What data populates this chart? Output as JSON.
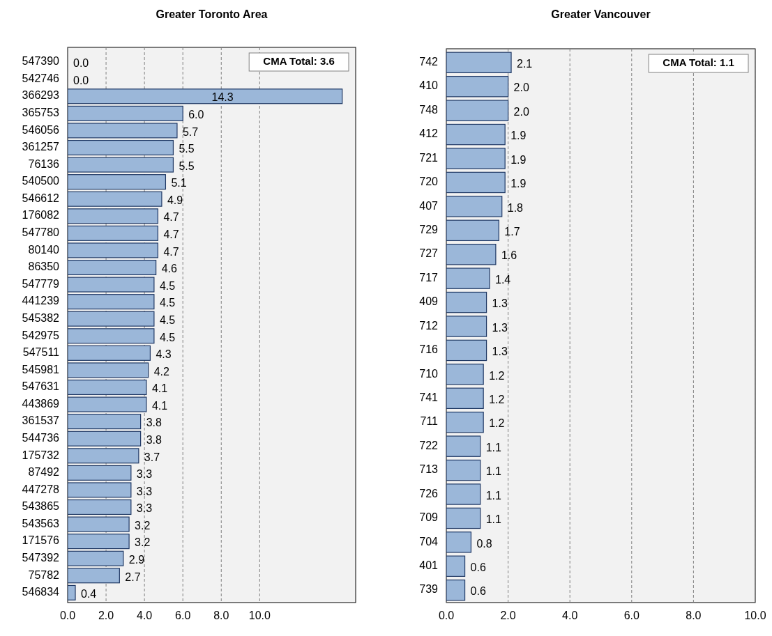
{
  "chart_data": [
    {
      "type": "bar",
      "orientation": "horizontal",
      "title": "Greater Toronto Area",
      "categories": [
        "547390",
        "542746",
        "366293",
        "365753",
        "546056",
        "361257",
        "76136",
        "540500",
        "546612",
        "176082",
        "547780",
        "80140",
        "86350",
        "547779",
        "441239",
        "545382",
        "542975",
        "547511",
        "545981",
        "547631",
        "443869",
        "361537",
        "544736",
        "175732",
        "87492",
        "447278",
        "543865",
        "543563",
        "171576",
        "547392",
        "75782",
        "546834"
      ],
      "values": [
        0,
        0,
        14.3,
        6,
        5.7,
        5.5,
        5.5,
        5.1,
        4.9,
        4.7,
        4.7,
        4.7,
        4.6,
        4.5,
        4.5,
        4.5,
        4.5,
        4.3,
        4.2,
        4.1,
        4.1,
        3.8,
        3.8,
        3.7,
        3.3,
        3.3,
        3.3,
        3.2,
        3.2,
        2.9,
        2.7,
        0.4
      ],
      "value_labels": [
        "0.0",
        "0.0",
        "14.3",
        "6.0",
        "5.7",
        "5.5",
        "5.5",
        "5.1",
        "4.9",
        "4.7",
        "4.7",
        "4.7",
        "4.6",
        "4.5",
        "4.5",
        "4.5",
        "4.5",
        "4.3",
        "4.2",
        "4.1",
        "4.1",
        "3.8",
        "3.8",
        "3.7",
        "3.3",
        "3.3",
        "3.3",
        "3.2",
        "3.2",
        "2.9",
        "2.7",
        "0.4"
      ],
      "color": "#9bb7d9",
      "xlim": [
        0,
        15
      ],
      "xticks": [
        {
          "value": 0,
          "label": "0.0"
        },
        {
          "value": 2,
          "label": "2.0"
        },
        {
          "value": 4,
          "label": "4.0"
        },
        {
          "value": 6,
          "label": "6.0"
        },
        {
          "value": 8,
          "label": "8.0"
        },
        {
          "value": 10,
          "label": "10.0"
        }
      ],
      "grid": "x",
      "annotations": [
        "CMA Total: 3.6"
      ]
    },
    {
      "type": "bar",
      "orientation": "horizontal",
      "title": "Greater Vancouver",
      "categories": [
        "742",
        "410",
        "748",
        "412",
        "721",
        "720",
        "407",
        "729",
        "727",
        "717",
        "409",
        "712",
        "716",
        "710",
        "741",
        "711",
        "722",
        "713",
        "726",
        "709",
        "704",
        "401",
        "739"
      ],
      "values": [
        2.1,
        2,
        2,
        1.9,
        1.9,
        1.9,
        1.8,
        1.7,
        1.6,
        1.4,
        1.3,
        1.3,
        1.3,
        1.2,
        1.2,
        1.2,
        1.1,
        1.1,
        1.1,
        1.1,
        0.8,
        0.6,
        0.6
      ],
      "value_labels": [
        "2.1",
        "2.0",
        "2.0",
        "1.9",
        "1.9",
        "1.9",
        "1.8",
        "1.7",
        "1.6",
        "1.4",
        "1.3",
        "1.3",
        "1.3",
        "1.2",
        "1.2",
        "1.2",
        "1.1",
        "1.1",
        "1.1",
        "1.1",
        "0.8",
        "0.6",
        "0.6"
      ],
      "color": "#9bb7d9",
      "xlim": [
        0,
        10
      ],
      "xticks": [
        {
          "value": 0,
          "label": "0.0"
        },
        {
          "value": 2,
          "label": "2.0"
        },
        {
          "value": 4,
          "label": "4.0"
        },
        {
          "value": 6,
          "label": "6.0"
        },
        {
          "value": 8,
          "label": "8.0"
        },
        {
          "value": 10,
          "label": "10.0"
        }
      ],
      "grid": "x",
      "annotations": [
        "CMA Total: 1.1"
      ]
    }
  ]
}
